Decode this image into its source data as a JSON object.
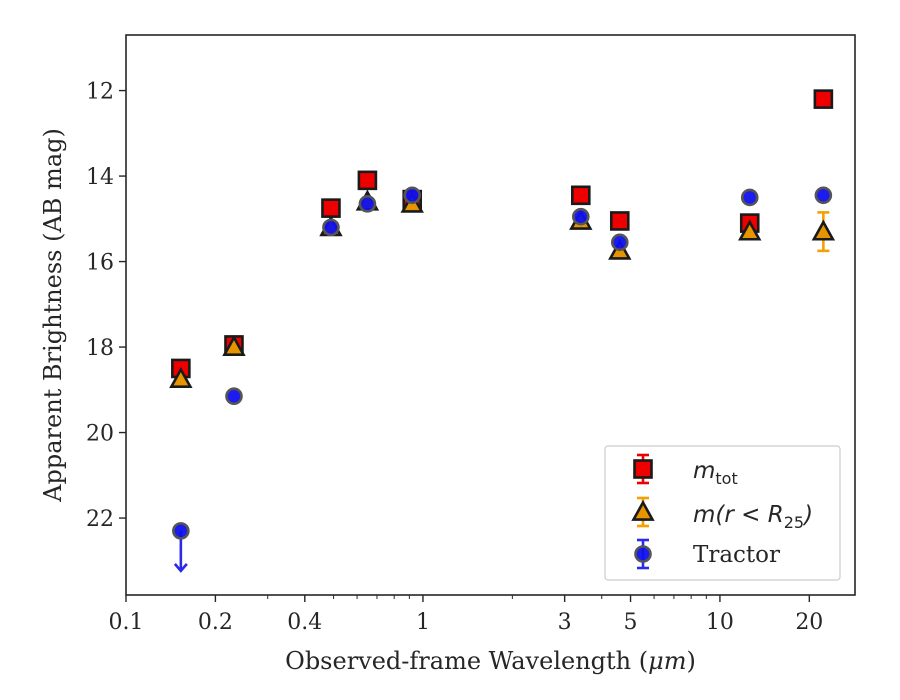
{
  "chart_data": {
    "type": "scatter",
    "xlabel": "Observed-frame Wavelength (",
    "xlabel_unit": "μm",
    "xlabel_close": ")",
    "ylabel": "Apparent Brightness (AB mag)",
    "xscale": "log",
    "xlim": [
      0.1,
      28.5
    ],
    "ylim": [
      23.8,
      10.7
    ],
    "y_inverted": true,
    "grid": false,
    "legend_position": "lower-right",
    "x_ticks": [
      {
        "value": 0.1,
        "label": "0.1"
      },
      {
        "value": 0.2,
        "label": "0.2"
      },
      {
        "value": 0.4,
        "label": "0.4"
      },
      {
        "value": 1,
        "label": "1"
      },
      {
        "value": 3,
        "label": "3"
      },
      {
        "value": 5,
        "label": "5"
      },
      {
        "value": 10,
        "label": "10"
      },
      {
        "value": 20,
        "label": "20"
      }
    ],
    "x_minor_ticks": [
      0.3,
      0.5,
      0.6,
      0.7,
      0.8,
      0.9,
      2,
      4,
      6,
      7,
      8,
      9
    ],
    "y_ticks": [
      {
        "value": 12,
        "label": "12"
      },
      {
        "value": 14,
        "label": "14"
      },
      {
        "value": 16,
        "label": "16"
      },
      {
        "value": 18,
        "label": "18"
      },
      {
        "value": 20,
        "label": "20"
      },
      {
        "value": 22,
        "label": "22"
      }
    ],
    "series": [
      {
        "name": "m_tot",
        "legend_base": "m",
        "legend_sub": "tot",
        "marker": "square",
        "color": "#ee0000",
        "edge": "#1a1a1a",
        "errcolor": "#ee0000",
        "points": [
          {
            "x": 0.153,
            "y": 18.5
          },
          {
            "x": 0.231,
            "y": 17.95
          },
          {
            "x": 0.49,
            "y": 14.75
          },
          {
            "x": 0.65,
            "y": 14.1
          },
          {
            "x": 0.92,
            "y": 14.55
          },
          {
            "x": 3.4,
            "y": 14.45
          },
          {
            "x": 4.6,
            "y": 15.05
          },
          {
            "x": 12.6,
            "y": 15.1
          },
          {
            "x": 22.3,
            "y": 12.2
          }
        ]
      },
      {
        "name": "m(r < R_25)",
        "legend_base": "m(r < R",
        "legend_sub": "25",
        "legend_close": ")",
        "marker": "triangle",
        "color": "#e69500",
        "edge": "#1a1a1a",
        "errcolor": "#f5a000",
        "points": [
          {
            "x": 0.153,
            "y": 18.75
          },
          {
            "x": 0.231,
            "y": 18.0
          },
          {
            "x": 0.49,
            "y": 15.2
          },
          {
            "x": 0.65,
            "y": 14.6
          },
          {
            "x": 0.92,
            "y": 14.65
          },
          {
            "x": 3.4,
            "y": 15.05
          },
          {
            "x": 4.6,
            "y": 15.75
          },
          {
            "x": 12.6,
            "y": 15.3
          },
          {
            "x": 22.3,
            "y": 15.3,
            "yerr": 0.45
          }
        ]
      },
      {
        "name": "Tractor",
        "marker": "circle",
        "color": "#1010ee",
        "edge": "#555555",
        "errcolor": "#2a2ae8",
        "points": [
          {
            "x": 0.153,
            "y": 22.3,
            "upper_limit": true
          },
          {
            "x": 0.231,
            "y": 19.15
          },
          {
            "x": 0.49,
            "y": 15.2
          },
          {
            "x": 0.65,
            "y": 14.65
          },
          {
            "x": 0.92,
            "y": 14.45
          },
          {
            "x": 3.4,
            "y": 14.95
          },
          {
            "x": 4.6,
            "y": 15.55
          },
          {
            "x": 12.6,
            "y": 14.5
          },
          {
            "x": 22.3,
            "y": 14.45
          }
        ]
      }
    ]
  }
}
